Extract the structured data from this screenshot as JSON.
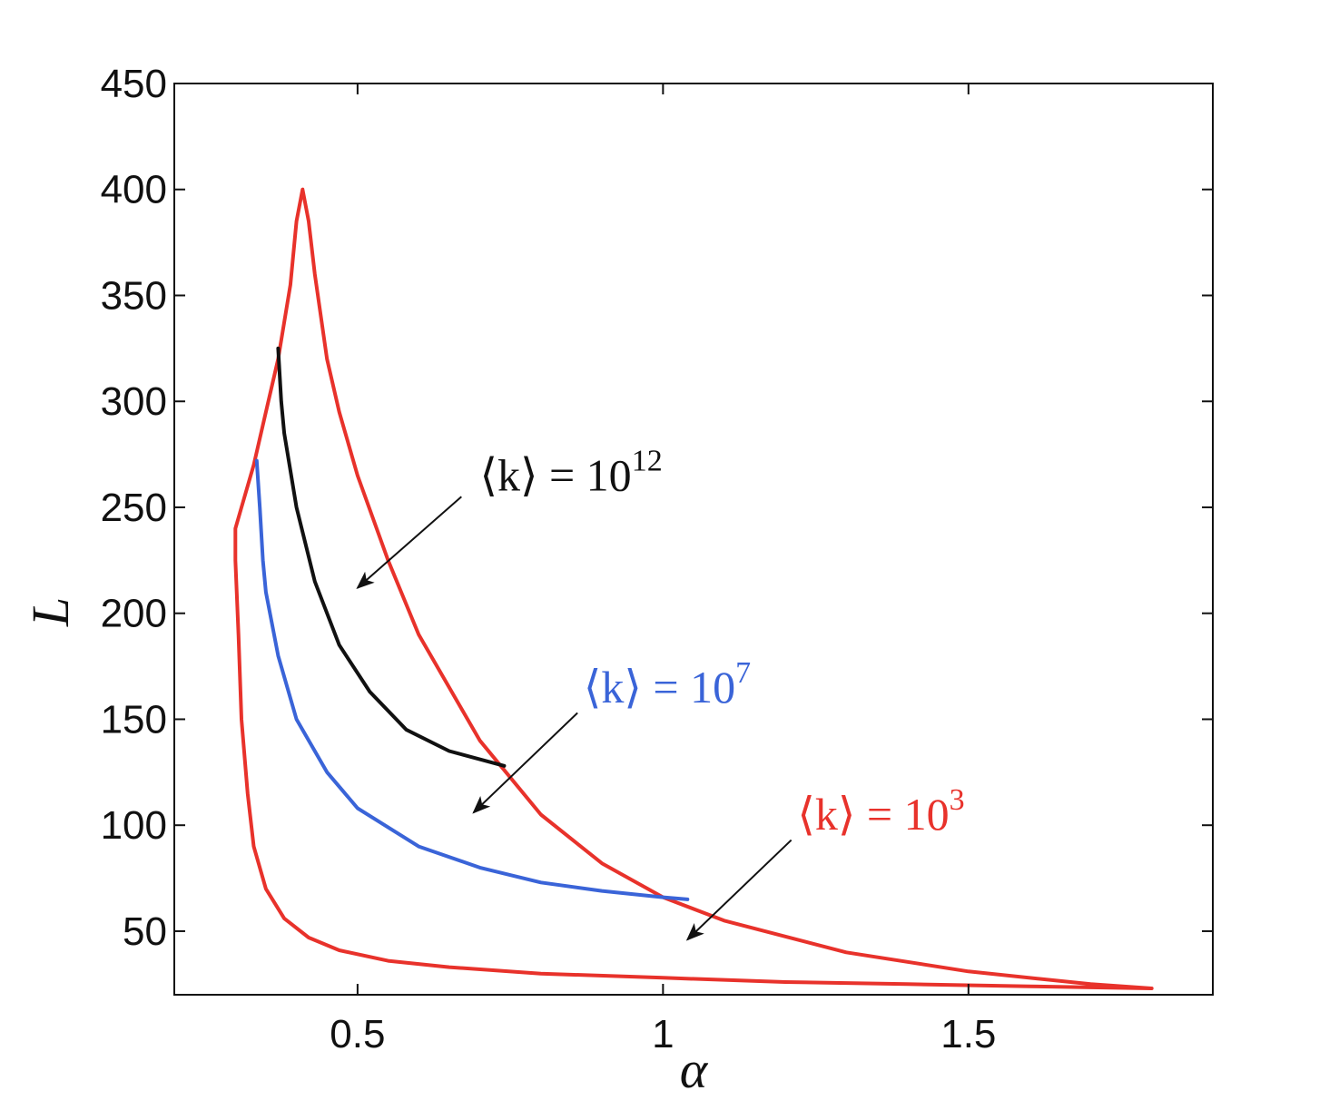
{
  "chart_data": {
    "type": "line",
    "title": "",
    "xlabel": "α",
    "ylabel": "L",
    "xlim": [
      0.2,
      1.9
    ],
    "ylim": [
      20,
      450
    ],
    "xticks": [
      0.5,
      1,
      1.5
    ],
    "xtick_labels": [
      "0.5",
      "1",
      "1.5"
    ],
    "yticks": [
      50,
      100,
      150,
      200,
      250,
      300,
      350,
      400,
      450
    ],
    "ytick_labels": [
      "50",
      "100",
      "150",
      "200",
      "250",
      "300",
      "350",
      "400",
      "450"
    ],
    "grid": false,
    "series": [
      {
        "name": "⟨k⟩ = 10^3",
        "color": "#e8322b",
        "x": [
          0.3,
          0.305,
          0.31,
          0.32,
          0.33,
          0.35,
          0.38,
          0.42,
          0.47,
          0.55,
          0.65,
          0.8,
          1.0,
          1.2,
          1.4,
          1.6,
          1.8,
          1.7,
          1.5,
          1.3,
          1.1,
          1.0,
          0.9,
          0.8,
          0.7,
          0.6,
          0.55,
          0.5,
          0.47,
          0.45,
          0.43,
          0.42,
          0.41,
          0.4,
          0.39,
          0.37,
          0.35,
          0.33,
          0.31,
          0.3,
          0.3
        ],
        "y": [
          225,
          190,
          150,
          115,
          90,
          70,
          56,
          47,
          41,
          36,
          33,
          30,
          28,
          26,
          25,
          24,
          23,
          25,
          31,
          40,
          55,
          66,
          82,
          105,
          140,
          190,
          225,
          265,
          295,
          320,
          360,
          385,
          400,
          385,
          355,
          320,
          295,
          270,
          250,
          240,
          225
        ]
      },
      {
        "name": "⟨k⟩ = 10^7",
        "color": "#3a64d8",
        "x": [
          0.335,
          0.34,
          0.345,
          0.35,
          0.37,
          0.4,
          0.45,
          0.5,
          0.6,
          0.7,
          0.8,
          0.9,
          1.0,
          1.04
        ],
        "y": [
          272,
          250,
          225,
          210,
          180,
          150,
          125,
          108,
          90,
          80,
          73,
          69,
          66,
          65
        ]
      },
      {
        "name": "⟨k⟩ = 10^12",
        "color": "#111111",
        "x": [
          0.37,
          0.375,
          0.38,
          0.4,
          0.43,
          0.47,
          0.52,
          0.58,
          0.65,
          0.74
        ],
        "y": [
          325,
          300,
          285,
          250,
          215,
          185,
          163,
          145,
          135,
          128
        ]
      }
    ],
    "annotations": [
      {
        "label": "⟨k⟩ = 10^12",
        "base": "⟨k⟩ = 10",
        "exp": "12",
        "color": "#111111",
        "text_at": [
          0.7,
          258
        ],
        "arrow_from": [
          0.67,
          255
        ],
        "arrow_to": [
          0.5,
          212
        ]
      },
      {
        "label": "⟨k⟩ = 10^7",
        "base": "⟨k⟩ = 10",
        "exp": "7",
        "color": "#3a64d8",
        "text_at": [
          0.87,
          158
        ],
        "arrow_from": [
          0.86,
          153
        ],
        "arrow_to": [
          0.69,
          106
        ]
      },
      {
        "label": "⟨k⟩ = 10^3",
        "base": "⟨k⟩ = 10",
        "exp": "3",
        "color": "#e8322b",
        "text_at": [
          1.22,
          98
        ],
        "arrow_from": [
          1.21,
          93
        ],
        "arrow_to": [
          1.04,
          46
        ]
      }
    ]
  }
}
